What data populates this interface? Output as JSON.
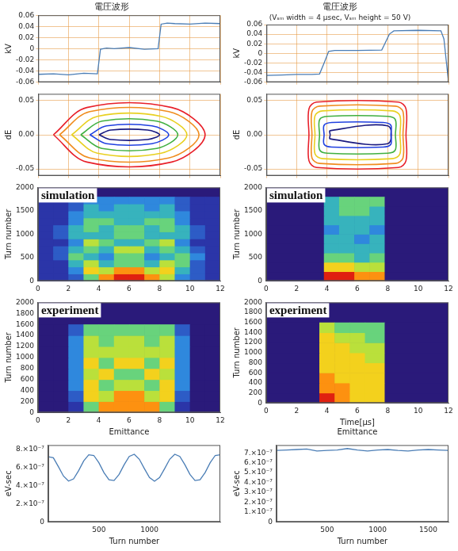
{
  "chart_data": [
    {
      "type": "line",
      "title": "電圧波形",
      "ylabel": "kV",
      "color": "#4a7db5",
      "grid": true,
      "tick_labels": "y",
      "x": [
        0,
        1,
        2,
        3,
        3.9,
        4.1,
        4.5,
        5,
        6,
        7,
        7.9,
        8.1,
        8.5,
        9,
        10,
        11,
        12
      ],
      "values": [
        -0.046,
        -0.045,
        -0.047,
        -0.044,
        -0.045,
        -0.001,
        0.001,
        0.0,
        0.002,
        -0.001,
        0.0,
        0.044,
        0.046,
        0.045,
        0.044,
        0.046,
        0.045
      ],
      "xlim": [
        0,
        12
      ],
      "xticks": [
        0,
        2,
        4,
        6,
        8,
        10,
        12
      ],
      "ylim": [
        -0.06,
        0.06
      ],
      "yticks": [
        -0.06,
        -0.04,
        -0.02,
        0,
        0.02,
        0.04,
        0.06
      ]
    },
    {
      "type": "line",
      "title": "電圧波形",
      "subtitle": "(Vₛₘ width = 4 μsec, Vₛₘ height = 50 V)",
      "ylabel": "kV",
      "color": "#4a7db5",
      "grid": true,
      "tick_labels": "y",
      "x": [
        0,
        1,
        2,
        3,
        3.5,
        3.8,
        4.1,
        4.5,
        6,
        7.6,
        7.8,
        8.1,
        8.4,
        10,
        11.5,
        11.7,
        11.9,
        12
      ],
      "values": [
        -0.046,
        -0.045,
        -0.044,
        -0.044,
        -0.043,
        -0.02,
        0.004,
        0.006,
        0.006,
        0.007,
        0.02,
        0.04,
        0.047,
        0.048,
        0.047,
        0.03,
        -0.03,
        -0.058
      ],
      "xlim": [
        0,
        12
      ],
      "xticks": [
        0,
        2,
        4,
        6,
        8,
        10,
        12
      ],
      "ylim": [
        -0.06,
        0.06
      ],
      "yticks": [
        -0.06,
        -0.04,
        -0.02,
        0,
        0.02,
        0.04,
        0.06
      ]
    },
    {
      "type": "contour",
      "ylabel": "dE",
      "grid": true,
      "tick_labels": "y",
      "xlim": [
        0,
        12
      ],
      "xticks": [
        0,
        2,
        4,
        6,
        8,
        10,
        12
      ],
      "ylim": [
        -0.06,
        0.06
      ],
      "yticks": [
        -0.05,
        {
          "value": 0,
          "label": "0.00"
        },
        0.05
      ],
      "series": [
        {
          "color": "#e8202a",
          "x": [
            1,
            3.2,
            8.8,
            11,
            8.8,
            3.2,
            1
          ],
          "y": [
            0,
            0.04,
            0.04,
            0,
            -0.04,
            -0.04,
            0
          ]
        },
        {
          "color": "#f08c1e",
          "x": [
            1.4,
            3.4,
            8.6,
            10.6,
            8.6,
            3.4,
            1.4
          ],
          "y": [
            0,
            0.034,
            0.034,
            0,
            -0.034,
            -0.034,
            0
          ]
        },
        {
          "color": "#e8d020",
          "x": [
            2.2,
            3.9,
            8.1,
            9.8,
            8.1,
            3.9,
            2.2
          ],
          "y": [
            0,
            0.027,
            0.027,
            0,
            -0.027,
            -0.027,
            0
          ]
        },
        {
          "color": "#40b040",
          "x": [
            2.8,
            4.2,
            7.8,
            9.2,
            7.8,
            4.2,
            2.8
          ],
          "y": [
            0,
            0.02,
            0.02,
            0,
            -0.02,
            -0.02,
            0
          ]
        },
        {
          "color": "#2040e0",
          "x": [
            3.4,
            4.5,
            7.5,
            8.6,
            7.5,
            4.5,
            3.4
          ],
          "y": [
            0,
            0.013,
            0.013,
            0,
            -0.013,
            -0.013,
            0
          ]
        },
        {
          "color": "#1a1a80",
          "x": [
            4,
            4.8,
            7.2,
            8,
            7.2,
            4.8,
            4
          ],
          "y": [
            0,
            0.007,
            0.007,
            0,
            -0.007,
            -0.007,
            0
          ]
        }
      ]
    },
    {
      "type": "contour",
      "ylabel": "dE",
      "grid": true,
      "tick_labels": "y",
      "xlim": [
        0,
        12
      ],
      "xticks": [
        0,
        2,
        4,
        6,
        8,
        10,
        12
      ],
      "ylim": [
        -0.06,
        0.06
      ],
      "yticks": [
        -0.05,
        {
          "value": 0,
          "label": "0.00"
        },
        0.05
      ],
      "series": [
        {
          "color": "#e8202a",
          "x": [
            2.8,
            2.8,
            3.3,
            8.7,
            9.2,
            9.2,
            9.2,
            8.7,
            3.3,
            2.8,
            2.8
          ],
          "y": [
            0,
            0.038,
            0.048,
            0.048,
            0.038,
            0,
            -0.038,
            -0.048,
            -0.048,
            -0.038,
            0
          ]
        },
        {
          "color": "#f08c1e",
          "x": [
            3,
            3,
            3.5,
            8.5,
            9,
            9,
            9,
            8.5,
            3.5,
            3,
            3
          ],
          "y": [
            0,
            0.034,
            0.042,
            0.042,
            0.034,
            0,
            -0.034,
            -0.042,
            -0.042,
            -0.034,
            0
          ]
        },
        {
          "color": "#e8d020",
          "x": [
            3.2,
            3.2,
            3.7,
            8.3,
            8.8,
            8.8,
            8.8,
            8.3,
            3.7,
            3.2,
            3.2
          ],
          "y": [
            0,
            0.028,
            0.035,
            0.035,
            0.028,
            0,
            -0.028,
            -0.035,
            -0.035,
            -0.028,
            0
          ]
        },
        {
          "color": "#40b040",
          "x": [
            3.5,
            3.5,
            4,
            8,
            8.5,
            8.5,
            8.5,
            8,
            4,
            3.5,
            3.5
          ],
          "y": [
            0,
            0.022,
            0.027,
            0.027,
            0.022,
            0,
            -0.022,
            -0.027,
            -0.027,
            -0.022,
            0
          ]
        },
        {
          "color": "#2040e0",
          "x": [
            3.8,
            3.8,
            4.3,
            7.7,
            8.2,
            8.2,
            8.2,
            7.7,
            4.3,
            3.8,
            3.8
          ],
          "y": [
            0,
            0.014,
            0.018,
            0.018,
            0.014,
            0,
            -0.014,
            -0.018,
            -0.018,
            -0.014,
            0
          ]
        },
        {
          "color": "#1a1a80",
          "x": [
            4.2,
            4.2,
            8,
            8,
            4.2,
            4.2
          ],
          "y": [
            0,
            0.006,
            0.013,
            -0.013,
            -0.006,
            0
          ]
        }
      ]
    },
    {
      "type": "heatmap",
      "annotation": "simulation",
      "ylabel": "Turn number",
      "xlim": [
        0,
        12
      ],
      "xticks": [
        0,
        2,
        4,
        6,
        8,
        10,
        12
      ],
      "ylim": [
        0,
        2000
      ],
      "yticks": [
        0,
        500,
        1000,
        1500,
        2000
      ],
      "zlim": [
        0,
        9
      ],
      "x_bins": [
        0,
        1,
        2,
        3,
        4,
        5,
        6,
        7,
        8,
        9,
        10,
        11,
        12
      ],
      "y_bins": [
        0,
        150,
        300,
        450,
        600,
        750,
        900,
        1050,
        1200,
        1350,
        1500,
        1650,
        1800
      ],
      "cells": [
        [
          1,
          1,
          2,
          5,
          8,
          9,
          9,
          8,
          6,
          3,
          2,
          1
        ],
        [
          1,
          1,
          3,
          7,
          6,
          8,
          8,
          6,
          7,
          4,
          2,
          1
        ],
        [
          1,
          1,
          4,
          6,
          4,
          5,
          5,
          4,
          6,
          5,
          2,
          1
        ],
        [
          1,
          2,
          5,
          4,
          3,
          5,
          5,
          3,
          4,
          5,
          3,
          1
        ],
        [
          1,
          2,
          4,
          5,
          4,
          6,
          6,
          4,
          5,
          4,
          2,
          1
        ],
        [
          1,
          1,
          3,
          6,
          5,
          4,
          4,
          5,
          6,
          3,
          1,
          1
        ],
        [
          1,
          2,
          4,
          4,
          4,
          5,
          5,
          4,
          4,
          4,
          2,
          1
        ],
        [
          1,
          2,
          4,
          5,
          4,
          5,
          5,
          4,
          5,
          4,
          2,
          1
        ],
        [
          1,
          1,
          3,
          5,
          5,
          4,
          4,
          5,
          5,
          3,
          1,
          1
        ],
        [
          1,
          1,
          3,
          4,
          4,
          4,
          4,
          4,
          4,
          3,
          1,
          1
        ],
        [
          1,
          1,
          2,
          4,
          3,
          4,
          4,
          3,
          4,
          2,
          1,
          1
        ],
        [
          1,
          1,
          2,
          3,
          3,
          3,
          3,
          3,
          3,
          2,
          1,
          1
        ]
      ]
    },
    {
      "type": "heatmap",
      "annotation": "simulation",
      "ylabel": "Turn number",
      "xlim": [
        0,
        12
      ],
      "xticks": [
        0,
        2,
        4,
        6,
        8,
        10,
        12
      ],
      "ylim": [
        0,
        2000
      ],
      "yticks": [
        0,
        500,
        1000,
        1500,
        2000
      ],
      "zlim": [
        0,
        9
      ],
      "x_bins": [
        0,
        3.8,
        4.8,
        5.8,
        6.8,
        7.8,
        12
      ],
      "y_bins": [
        0,
        200,
        400,
        600,
        800,
        1000,
        1200,
        1400,
        1600,
        1800
      ],
      "cells": [
        [
          0,
          9,
          9,
          8,
          8,
          0
        ],
        [
          0,
          7,
          7,
          6,
          6,
          0
        ],
        [
          0,
          5,
          5,
          4,
          5,
          0
        ],
        [
          0,
          4,
          4,
          4,
          4,
          0
        ],
        [
          0,
          4,
          4,
          3,
          4,
          0
        ],
        [
          0,
          3,
          4,
          4,
          3,
          0
        ],
        [
          0,
          4,
          4,
          4,
          4,
          0
        ],
        [
          0,
          4,
          5,
          5,
          4,
          0
        ],
        [
          0,
          4,
          5,
          5,
          5,
          0
        ]
      ]
    },
    {
      "type": "heatmap",
      "annotation": "experiment",
      "ylabel": "Turn number",
      "xlabel": "Emittance",
      "xlim": [
        0,
        12
      ],
      "xticks": [
        0,
        2,
        4,
        6,
        8,
        10,
        12
      ],
      "ylim": [
        0,
        2000
      ],
      "yticks": [
        0,
        200,
        400,
        600,
        800,
        1000,
        1200,
        1400,
        1600,
        1800,
        2000
      ],
      "zlim": [
        0,
        9
      ],
      "x_bins": [
        0,
        1,
        2,
        3,
        4,
        5,
        6,
        7,
        8,
        9,
        10,
        11,
        12
      ],
      "y_bins": [
        0,
        200,
        400,
        600,
        800,
        1000,
        1200,
        1400,
        1600
      ],
      "cells": [
        [
          0,
          0,
          1,
          5,
          8,
          8,
          8,
          8,
          5,
          1,
          0,
          0
        ],
        [
          0,
          0,
          2,
          7,
          6,
          8,
          8,
          6,
          7,
          2,
          0,
          0
        ],
        [
          0,
          0,
          3,
          7,
          5,
          6,
          6,
          5,
          7,
          3,
          0,
          0
        ],
        [
          0,
          0,
          3,
          6,
          7,
          5,
          5,
          7,
          6,
          3,
          0,
          0
        ],
        [
          0,
          0,
          3,
          7,
          5,
          7,
          7,
          5,
          7,
          3,
          0,
          0
        ],
        [
          0,
          0,
          3,
          6,
          6,
          6,
          6,
          6,
          6,
          3,
          0,
          0
        ],
        [
          0,
          0,
          3,
          6,
          5,
          6,
          6,
          5,
          6,
          3,
          0,
          0
        ],
        [
          0,
          0,
          2,
          5,
          5,
          5,
          5,
          5,
          5,
          2,
          0,
          0
        ]
      ]
    },
    {
      "type": "heatmap",
      "annotation": "experiment",
      "ylabel": "Turn number",
      "xlabel": [
        "Time[μs]",
        "Emittance"
      ],
      "xlim": [
        0,
        12
      ],
      "xticks": [
        0,
        2,
        4,
        6,
        8,
        10,
        12
      ],
      "ylim": [
        0,
        2000
      ],
      "yticks": [
        0,
        200,
        400,
        600,
        800,
        1000,
        1200,
        1400,
        1600,
        1800,
        2000
      ],
      "zlim": [
        0,
        9
      ],
      "x_bins": [
        0,
        3.5,
        4.5,
        5.5,
        6.5,
        7.8,
        12
      ],
      "y_bins": [
        0,
        200,
        400,
        600,
        800,
        1000,
        1200,
        1400,
        1600
      ],
      "cells": [
        [
          0,
          9,
          8,
          7,
          7,
          0
        ],
        [
          0,
          8,
          8,
          7,
          7,
          0
        ],
        [
          0,
          8,
          7,
          7,
          7,
          0
        ],
        [
          0,
          7,
          7,
          7,
          7,
          0
        ],
        [
          0,
          7,
          7,
          7,
          6,
          0
        ],
        [
          0,
          7,
          7,
          6,
          6,
          0
        ],
        [
          0,
          7,
          6,
          6,
          5,
          0
        ],
        [
          0,
          6,
          5,
          5,
          5,
          0
        ]
      ]
    },
    {
      "type": "line",
      "xlabel": "Turn number",
      "ylabel": "eV-sec",
      "color": "#4a7db5",
      "x": [
        0,
        50,
        100,
        150,
        200,
        250,
        300,
        350,
        400,
        450,
        500,
        550,
        600,
        650,
        700,
        750,
        800,
        850,
        900,
        950,
        1000,
        1050,
        1100,
        1150,
        1200,
        1250,
        1300,
        1350,
        1400,
        1450,
        1500,
        1550,
        1600,
        1650,
        1700
      ],
      "values": [
        7.2e-07,
        7.1e-07,
        6.11e-07,
        5.07e-07,
        4.52e-07,
        4.76e-07,
        5.67e-07,
        6.75e-07,
        7.43e-07,
        7.35e-07,
        6.55e-07,
        5.45e-07,
        4.65e-07,
        4.57e-07,
        5.25e-07,
        6.33e-07,
        7.24e-07,
        7.48e-07,
        6.93e-07,
        5.89e-07,
        4.9e-07,
        4.5e-07,
        4.9e-07,
        5.89e-07,
        6.93e-07,
        7.48e-07,
        7.24e-07,
        6.33e-07,
        5.25e-07,
        4.57e-07,
        4.65e-07,
        5.45e-07,
        6.55e-07,
        7.35e-07,
        7.43e-07
      ],
      "xlim": [
        0,
        1700
      ],
      "xticks": [
        500,
        1000
      ],
      "ylim": [
        0,
        8.5e-07
      ],
      "yticks": [
        0,
        {
          "value": 2e-07,
          "label": "2.×10⁻⁷"
        },
        {
          "value": 4e-07,
          "label": "4.×10⁻⁷"
        },
        {
          "value": 6e-07,
          "label": "6.×10⁻⁷"
        },
        {
          "value": 8e-07,
          "label": "8.×10⁻⁷"
        }
      ]
    },
    {
      "type": "line",
      "xlabel": "Turn number",
      "ylabel": "eV-sec",
      "color": "#4a7db5",
      "x": [
        0,
        100,
        200,
        300,
        400,
        500,
        600,
        700,
        800,
        900,
        1000,
        1100,
        1200,
        1300,
        1400,
        1500,
        1600,
        1700
      ],
      "values": [
        7.25e-07,
        7.3e-07,
        7.35e-07,
        7.4e-07,
        7.2e-07,
        7.25e-07,
        7.3e-07,
        7.45e-07,
        7.3e-07,
        7.2e-07,
        7.3e-07,
        7.35e-07,
        7.25e-07,
        7.2e-07,
        7.3e-07,
        7.35e-07,
        7.3e-07,
        7.25e-07
      ],
      "xlim": [
        0,
        1700
      ],
      "xticks": [
        500,
        1000,
        1500
      ],
      "ylim": [
        0,
        7.8e-07
      ],
      "yticks": [
        0,
        {
          "value": 1e-07,
          "label": "1.×10⁻⁷"
        },
        {
          "value": 2e-07,
          "label": "2.×10⁻⁷"
        },
        {
          "value": 3e-07,
          "label": "3.×10⁻⁷"
        },
        {
          "value": 4e-07,
          "label": "4.×10⁻⁷"
        },
        {
          "value": 5e-07,
          "label": "5.×10⁻⁷"
        },
        {
          "value": 6e-07,
          "label": "6.×10⁻⁷"
        },
        {
          "value": 7e-07,
          "label": "7.×10⁻⁷"
        }
      ]
    }
  ]
}
